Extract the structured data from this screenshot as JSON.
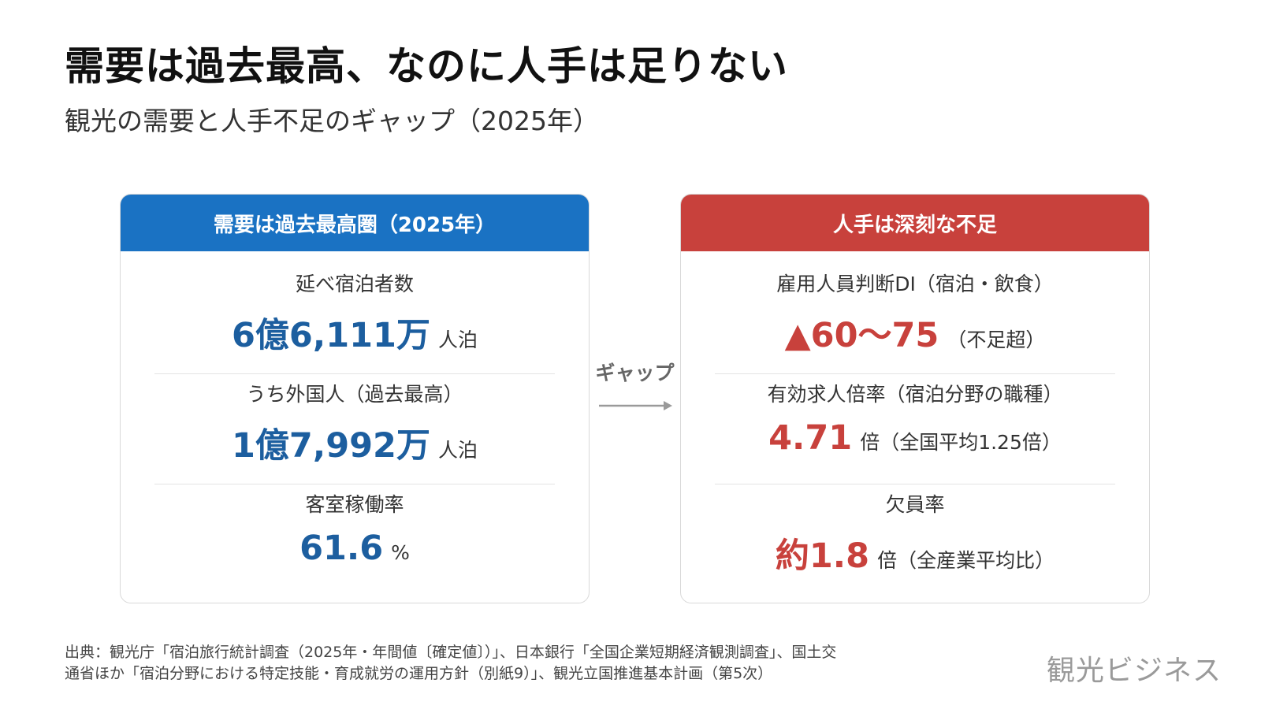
{
  "title": "需要は過去最高、なのに人手は足りない",
  "subtitle": "観光の需要と人手不足のギャップ（2025年）",
  "left_card": {
    "header": "需要は過去最高圏（2025年）",
    "rows": [
      {
        "label": "延べ宿泊者数",
        "value": "6億6,111万",
        "unit": "人泊"
      },
      {
        "label": "うち外国人（過去最高）",
        "value": "1億7,992万",
        "unit": "人泊"
      },
      {
        "label": "客室稼働率",
        "value": "61.6",
        "unit": "%"
      }
    ]
  },
  "gap": {
    "label": "ギャップ"
  },
  "right_card": {
    "header": "人手は深刻な不足",
    "rows": [
      {
        "label": "雇用人員判断DI（宿泊・飲食）",
        "value": "▲60〜75",
        "unit": "（不足超）"
      },
      {
        "label": "有効求人倍率（宿泊分野の職種）",
        "value": "4.71",
        "unit": "倍（全国平均1.25倍）"
      },
      {
        "label": "欠員率",
        "value": "約1.8",
        "unit": "倍（全産業平均比）"
      }
    ]
  },
  "source": {
    "line1": "出典：観光庁「宿泊旅行統計調査（2025年・年間値〔確定値〕）」、日本銀行「全国企業短期経済観測調査」、国土交",
    "line2": "通省ほか「宿泊分野における特定技能・育成就労の運用方針（別紙9）」、観光立国推進基本計画（第5次）"
  },
  "logo": "観光ビジネス",
  "colors": {
    "blue_header": "#1a72c3",
    "blue_value": "#1c5e9f",
    "red": "#c8413c",
    "arrow": "#9a9a9a"
  }
}
